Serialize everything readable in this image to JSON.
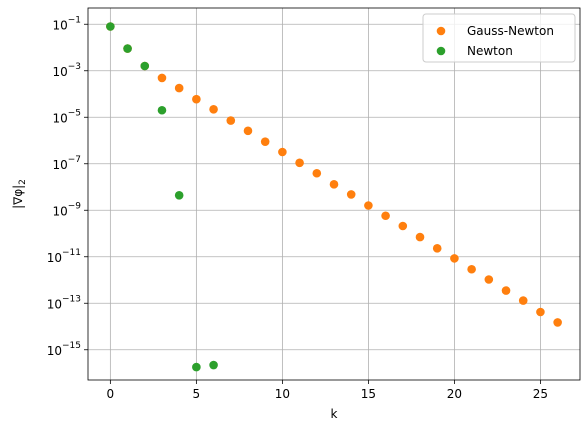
{
  "chart_data": {
    "type": "scatter",
    "xlabel": "k",
    "ylabel": "|∇φ|",
    "ylabel_subscript": "2",
    "log_y": true,
    "grid": true,
    "legend": "upper right",
    "xlim": [
      -1.3,
      27.3
    ],
    "xticks": [
      0,
      5,
      10,
      15,
      20,
      25
    ],
    "ylim": [
      5e-17,
      0.5
    ],
    "yticks": [
      {
        "value": 0.1,
        "label": "10",
        "exponent": "−1"
      },
      {
        "value": 0.001,
        "label": "10",
        "exponent": "−3"
      },
      {
        "value": 1e-05,
        "label": "10",
        "exponent": "−5"
      },
      {
        "value": 1e-07,
        "label": "10",
        "exponent": "−7"
      },
      {
        "value": 1e-09,
        "label": "10",
        "exponent": "−9"
      },
      {
        "value": 1e-11,
        "label": "10",
        "exponent": "−11"
      },
      {
        "value": 1e-13,
        "label": "10",
        "exponent": "−13"
      },
      {
        "value": 1e-15,
        "label": "10",
        "exponent": "−15"
      }
    ],
    "series": [
      {
        "name": "Gauss-Newton",
        "color": "#ff7f0e",
        "x": [
          0,
          1,
          2,
          3,
          4,
          5,
          6,
          7,
          8,
          9,
          10,
          11,
          12,
          13,
          14,
          15,
          16,
          17,
          18,
          19,
          20,
          21,
          22,
          23,
          24,
          25,
          26
        ],
        "values": [
          0.08,
          0.009,
          0.0016,
          0.00049,
          0.00018,
          6e-05,
          2.2e-05,
          7.2e-06,
          2.6e-06,
          8.9e-07,
          3.2e-07,
          1.1e-07,
          3.9e-08,
          1.3e-08,
          4.8e-09,
          1.6e-09,
          5.8e-10,
          2.1e-10,
          7e-11,
          2.3e-11,
          8.5e-12,
          2.9e-12,
          1.05e-12,
          3.5e-13,
          1.3e-13,
          4.2e-14,
          1.5e-14
        ]
      },
      {
        "name": "Newton",
        "color": "#2ca02c",
        "x": [
          0,
          1,
          2,
          3,
          4,
          5,
          6
        ],
        "values": [
          0.08,
          0.009,
          0.0016,
          2e-05,
          4.4e-09,
          1.8e-16,
          2.2e-16
        ]
      }
    ]
  }
}
